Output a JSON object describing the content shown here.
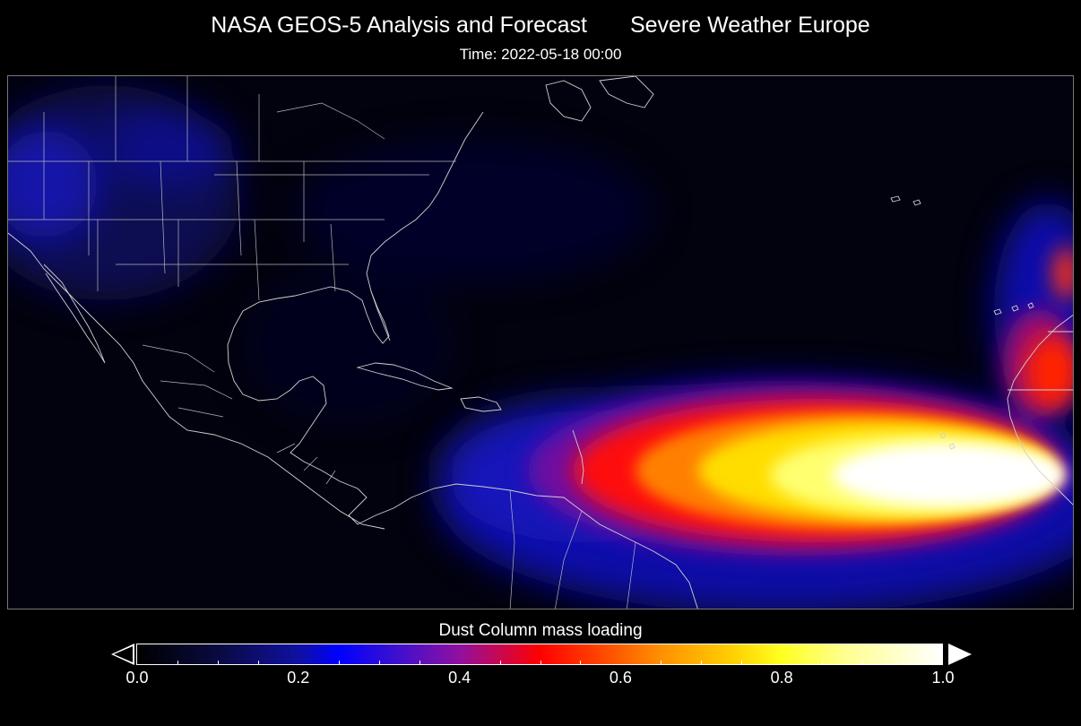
{
  "header": {
    "title_left": "NASA GEOS-5 Analysis and Forecast",
    "title_right": "Severe Weather Europe",
    "time": "Time: 2022-05-18 00:00"
  },
  "colorbar": {
    "title": "Dust Column mass loading",
    "ticks": [
      "0.0",
      "0.2",
      "0.4",
      "0.6",
      "0.8",
      "1.0"
    ],
    "min": 0.0,
    "max": 1.0,
    "colors": [
      "#000000",
      "#0a0a40",
      "#1010a0",
      "#0000ff",
      "#9010a0",
      "#ff0000",
      "#ff9000",
      "#ffff20",
      "#ffffff"
    ]
  },
  "map": {
    "region": "Atlantic basin: North America, Caribbean, West Africa",
    "feature": "Saharan dust plume over tropical Atlantic",
    "border_color": "#d0d0d0"
  }
}
